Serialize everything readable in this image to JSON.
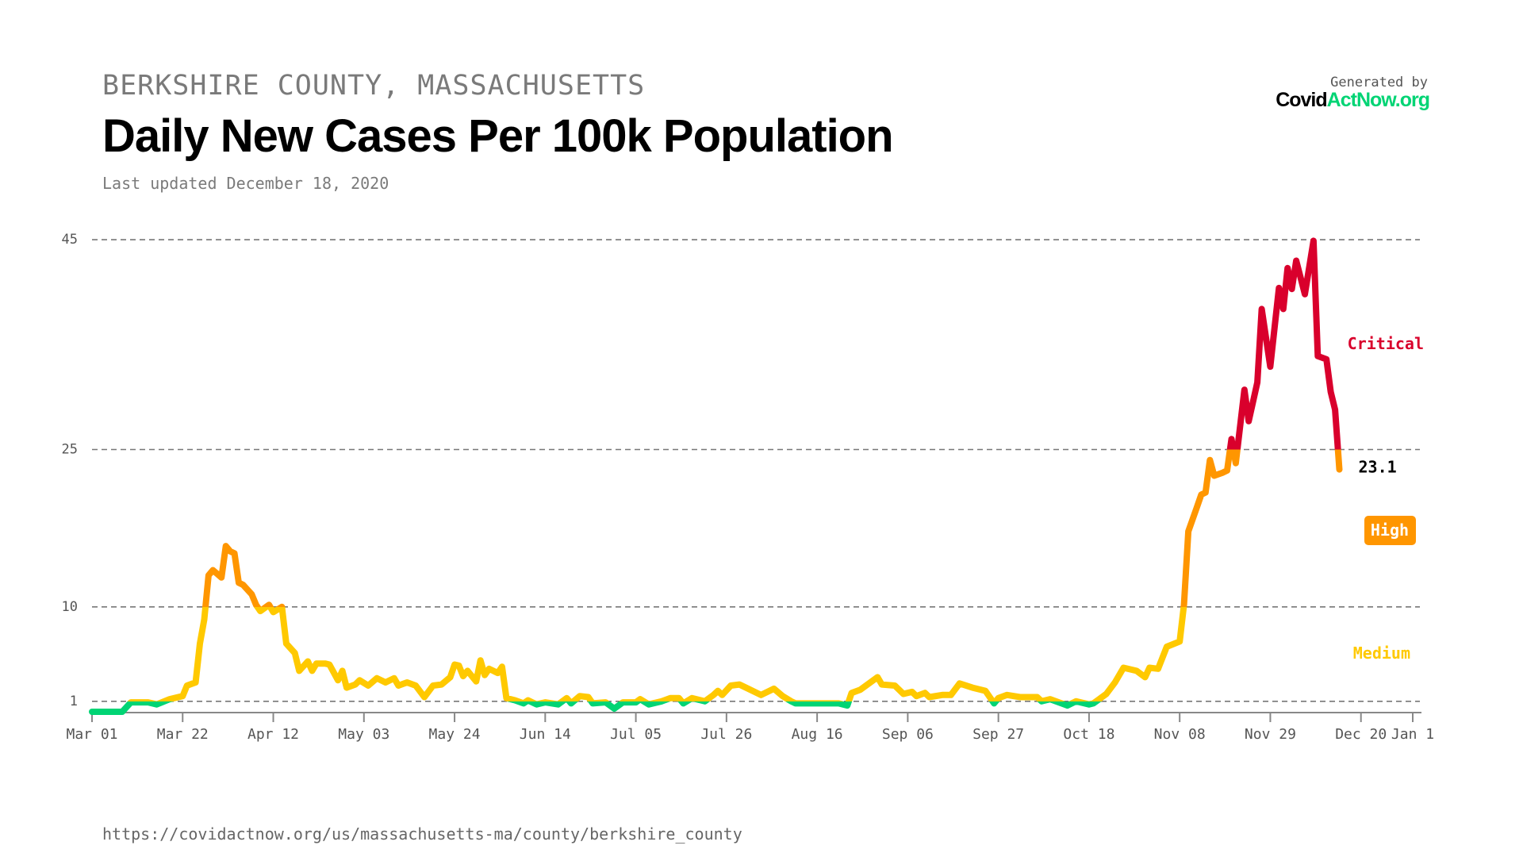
{
  "header": {
    "region": "BERKSHIRE COUNTY, MASSACHUSETTS",
    "title": "Daily New Cases Per 100k Population",
    "updated": "Last updated December 18, 2020",
    "generated_by": "Generated by",
    "logo_part1": "Covid",
    "logo_part2": "ActNow.org"
  },
  "footer": {
    "url": "https://covidactnow.org/us/massachusetts-ma/county/berkshire_county"
  },
  "colors": {
    "low": "#00d474",
    "medium": "#ffc900",
    "high": "#ff9600",
    "critical": "#d9002c",
    "grid": "#777777",
    "axis": "#888888"
  },
  "chart_data": {
    "type": "line",
    "title": "Daily New Cases Per 100k Population",
    "xlim": [
      "2020-03-01",
      "2021-01-01"
    ],
    "ylim": [
      0,
      45
    ],
    "y_ticks": [
      1,
      10,
      25,
      45
    ],
    "y_tick_labels": [
      "1",
      "10",
      "25",
      "45"
    ],
    "x_ticks": [
      "2020-03-01",
      "2020-03-22",
      "2020-04-12",
      "2020-05-03",
      "2020-05-24",
      "2020-06-14",
      "2020-07-05",
      "2020-07-26",
      "2020-08-16",
      "2020-09-06",
      "2020-09-27",
      "2020-10-18",
      "2020-11-08",
      "2020-11-29",
      "2020-12-20",
      "2021-01-01"
    ],
    "x_tick_labels": [
      "Mar 01",
      "Mar 22",
      "Apr 12",
      "May 03",
      "May 24",
      "Jun 14",
      "Jul 05",
      "Jul 26",
      "Aug 16",
      "Sep 06",
      "Sep 27",
      "Oct 18",
      "Nov 08",
      "Nov 29",
      "Dec 20",
      "Jan 1"
    ],
    "grid": "horizontal dashed at thresholds",
    "thresholds": [
      {
        "label": "Medium",
        "from": 1,
        "to": 10,
        "color": "#ffc900"
      },
      {
        "label": "High",
        "from": 10,
        "to": 25,
        "color": "#ff9600"
      },
      {
        "label": "Critical",
        "from": 25,
        "to": null,
        "color": "#d9002c"
      }
    ],
    "last_value_label": "23.1",
    "current_level": "High",
    "x": [
      "2020-03-01",
      "2020-03-08",
      "2020-03-10",
      "2020-03-14",
      "2020-03-16",
      "2020-03-19",
      "2020-03-22",
      "2020-03-23",
      "2020-03-25",
      "2020-03-26",
      "2020-03-27",
      "2020-03-28",
      "2020-03-29",
      "2020-03-31",
      "2020-04-01",
      "2020-04-02",
      "2020-04-03",
      "2020-04-04",
      "2020-04-05",
      "2020-04-07",
      "2020-04-08",
      "2020-04-09",
      "2020-04-11",
      "2020-04-12",
      "2020-04-14",
      "2020-04-15",
      "2020-04-17",
      "2020-04-18",
      "2020-04-20",
      "2020-04-21",
      "2020-04-22",
      "2020-04-24",
      "2020-04-25",
      "2020-04-27",
      "2020-04-28",
      "2020-04-29",
      "2020-05-01",
      "2020-05-02",
      "2020-05-04",
      "2020-05-06",
      "2020-05-08",
      "2020-05-10",
      "2020-05-11",
      "2020-05-13",
      "2020-05-15",
      "2020-05-17",
      "2020-05-19",
      "2020-05-21",
      "2020-05-23",
      "2020-05-24",
      "2020-05-25",
      "2020-05-26",
      "2020-05-27",
      "2020-05-29",
      "2020-05-30",
      "2020-05-31",
      "2020-06-01",
      "2020-06-03",
      "2020-06-04",
      "2020-06-05",
      "2020-06-07",
      "2020-06-09",
      "2020-06-10",
      "2020-06-12",
      "2020-06-14",
      "2020-06-17",
      "2020-06-19",
      "2020-06-20",
      "2020-06-22",
      "2020-06-24",
      "2020-06-25",
      "2020-06-28",
      "2020-06-30",
      "2020-07-02",
      "2020-07-05",
      "2020-07-06",
      "2020-07-08",
      "2020-07-11",
      "2020-07-13",
      "2020-07-15",
      "2020-07-16",
      "2020-07-18",
      "2020-07-21",
      "2020-07-23",
      "2020-07-24",
      "2020-07-25",
      "2020-07-27",
      "2020-07-29",
      "2020-07-31",
      "2020-08-03",
      "2020-08-06",
      "2020-08-08",
      "2020-08-10",
      "2020-08-11",
      "2020-08-21",
      "2020-08-23",
      "2020-08-24",
      "2020-08-26",
      "2020-08-30",
      "2020-08-31",
      "2020-09-03",
      "2020-09-05",
      "2020-09-07",
      "2020-09-08",
      "2020-09-10",
      "2020-09-11",
      "2020-09-14",
      "2020-09-16",
      "2020-09-18",
      "2020-09-21",
      "2020-09-24",
      "2020-09-26",
      "2020-09-27",
      "2020-09-29",
      "2020-10-02",
      "2020-10-06",
      "2020-10-07",
      "2020-10-09",
      "2020-10-13",
      "2020-10-14",
      "2020-10-15",
      "2020-10-18",
      "2020-10-19",
      "2020-10-20",
      "2020-10-22",
      "2020-10-24",
      "2020-10-26",
      "2020-10-29",
      "2020-10-31",
      "2020-11-01",
      "2020-11-03",
      "2020-11-05",
      "2020-11-08",
      "2020-11-09",
      "2020-11-10",
      "2020-11-12",
      "2020-11-13",
      "2020-11-14",
      "2020-11-15",
      "2020-11-16",
      "2020-11-18",
      "2020-11-19",
      "2020-11-20",
      "2020-11-21",
      "2020-11-23",
      "2020-11-24",
      "2020-11-26",
      "2020-11-27",
      "2020-11-29",
      "2020-12-01",
      "2020-12-02",
      "2020-12-03",
      "2020-12-04",
      "2020-12-05",
      "2020-12-07",
      "2020-12-09",
      "2020-12-10",
      "2020-12-12",
      "2020-12-13",
      "2020-12-14",
      "2020-12-15"
    ],
    "y": [
      0,
      0,
      0.9,
      0.9,
      0.7,
      1.2,
      1.5,
      2.5,
      2.8,
      6.5,
      8.8,
      13,
      13.5,
      12.8,
      15.8,
      15.3,
      15.1,
      12.3,
      12.1,
      11.2,
      10.2,
      9.6,
      10.2,
      9.5,
      10,
      6.5,
      5.6,
      3.9,
      4.8,
      3.9,
      4.6,
      4.6,
      4.5,
      3.0,
      3.9,
      2.3,
      2.6,
      3.0,
      2.5,
      3.2,
      2.8,
      3.2,
      2.5,
      2.8,
      2.5,
      1.4,
      2.5,
      2.6,
      3.3,
      4.5,
      4.4,
      3.4,
      3.9,
      2.9,
      4.9,
      3.5,
      4.1,
      3.7,
      4.3,
      1.3,
      1.1,
      0.8,
      1.1,
      0.7,
      0.9,
      0.7,
      1.3,
      0.8,
      1.5,
      1.4,
      0.8,
      0.9,
      0.3,
      0.9,
      0.9,
      1.2,
      0.7,
      1.0,
      1.3,
      1.3,
      0.8,
      1.3,
      1.0,
      1.6,
      2.0,
      1.6,
      2.5,
      2.6,
      2.2,
      1.6,
      2.2,
      1.5,
      1.0,
      0.8,
      0.8,
      0.6,
      1.8,
      2.1,
      3.3,
      2.6,
      2.5,
      1.7,
      1.9,
      1.5,
      1.8,
      1.4,
      1.6,
      1.6,
      2.7,
      2.3,
      2.0,
      0.8,
      1.3,
      1.6,
      1.4,
      1.4,
      1.0,
      1.2,
      0.6,
      0.8,
      1.0,
      0.7,
      0.8,
      1.1,
      1.7,
      2.8,
      4.2,
      3.9,
      3.3,
      4.2,
      4.1,
      6.2,
      6.7,
      10.2,
      17.2,
      19.5,
      20.7,
      20.9,
      24,
      22.5,
      22.8,
      23,
      26,
      23.7,
      30.7,
      27.7,
      31.4,
      38.4,
      32.9,
      40.4,
      38.4,
      42.3,
      40.3,
      43,
      39.8,
      44.9,
      33.9,
      33.6,
      30.5,
      28.8,
      23.1
    ]
  }
}
